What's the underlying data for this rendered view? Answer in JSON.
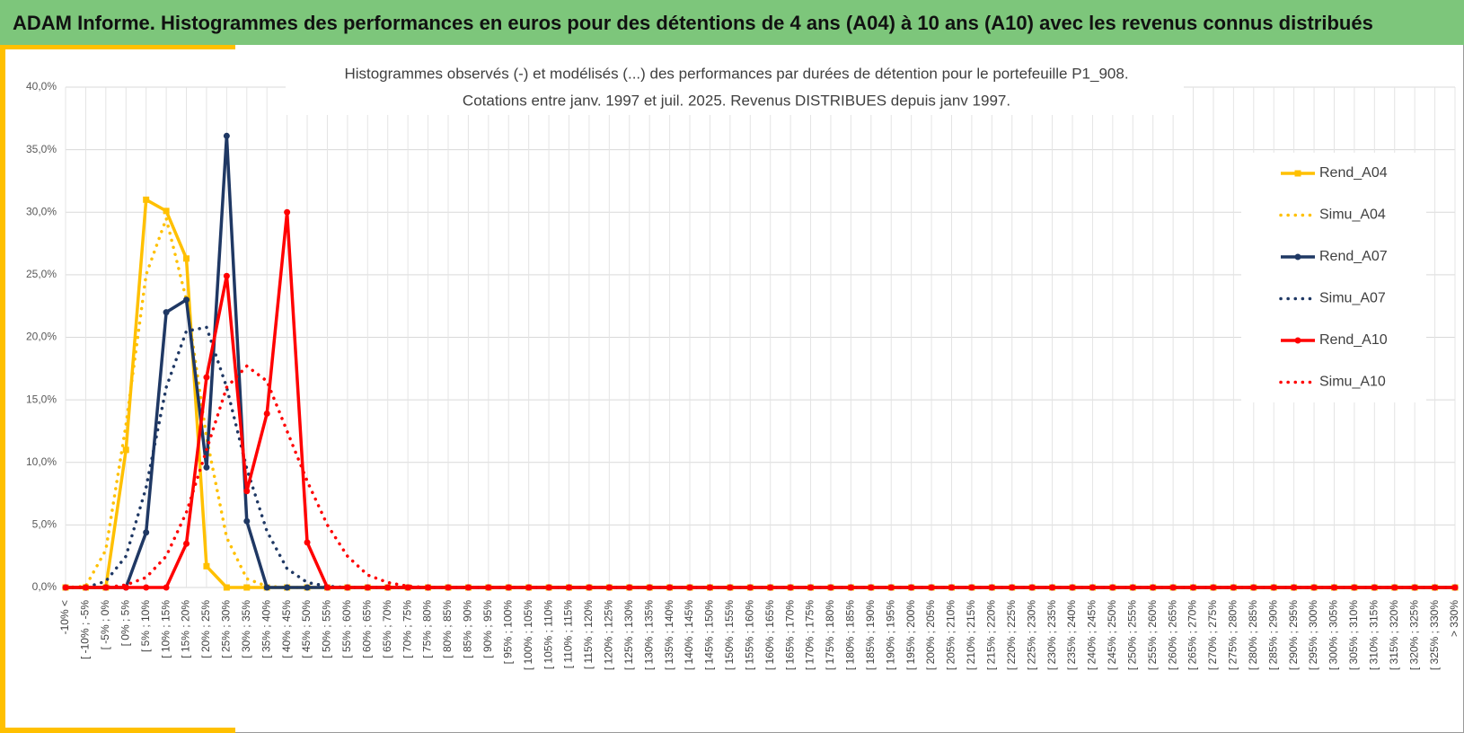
{
  "header_title": "ADAM Informe. Histogrammes des performances en euros pour des détentions de 4 ans (A04) à 10 ans (A10) avec les revenus connus distribués",
  "chart_data": {
    "type": "line",
    "title": [
      "Histogrammes observés (-) et modélisés (...) des performances par durées de détention pour le portefeuille P1_908.",
      "Cotations entre janv. 1997 et juil. 2025. Revenus DISTRIBUES depuis janv 1997."
    ],
    "categories": [
      "-10% <",
      "[ -10% ; -5%",
      "[ -5% ; 0%",
      "[ 0% ; 5%",
      "[ 5% ; 10%",
      "[ 10% ; 15%",
      "[ 15% ; 20%",
      "[ 20% ; 25%",
      "[ 25% ; 30%",
      "[ 30% ; 35%",
      "[ 35% ; 40%",
      "[ 40% ; 45%",
      "[ 45% ; 50%",
      "[ 50% ; 55%",
      "[ 55% ; 60%",
      "[ 60% ; 65%",
      "[ 65% ; 70%",
      "[ 70% ; 75%",
      "[ 75% ; 80%",
      "[ 80% ; 85%",
      "[ 85% ; 90%",
      "[ 90% ; 95%",
      "[ 95% ; 100%",
      "[ 100% ; 105%",
      "[ 105% ; 110%",
      "[ 110% ; 115%",
      "[ 115% ; 120%",
      "[ 120% ; 125%",
      "[ 125% ; 130%",
      "[ 130% ; 135%",
      "[ 135% ; 140%",
      "[ 140% ; 145%",
      "[ 145% ; 150%",
      "[ 150% ; 155%",
      "[ 155% ; 160%",
      "[ 160% ; 165%",
      "[ 165% ; 170%",
      "[ 170% ; 175%",
      "[ 175% ; 180%",
      "[ 180% ; 185%",
      "[ 185% ; 190%",
      "[ 190% ; 195%",
      "[ 195% ; 200%",
      "[ 200% ; 205%",
      "[ 205% ; 210%",
      "[ 210% ; 215%",
      "[ 215% ; 220%",
      "[ 220% ; 225%",
      "[ 225% ; 230%",
      "[ 230% ; 235%",
      "[ 235% ; 240%",
      "[ 240% ; 245%",
      "[ 245% ; 250%",
      "[ 250% ; 255%",
      "[ 255% ; 260%",
      "[ 260% ; 265%",
      "[ 265% ; 270%",
      "[ 270% ; 275%",
      "[ 275% ; 280%",
      "[ 280% ; 285%",
      "[ 285% ; 290%",
      "[ 290% ; 295%",
      "[ 295% ; 300%",
      "[ 300% ; 305%",
      "[ 305% ; 310%",
      "[ 310% ; 315%",
      "[ 315% ; 320%",
      "[ 320% ; 325%",
      "[ 325% ; 330%",
      "> 330%"
    ],
    "series": [
      {
        "name": "Rend_A04",
        "color": "#ffc000",
        "marker": "square",
        "dash": false,
        "values": [
          0,
          0,
          0,
          11.0,
          31.0,
          30.1,
          26.3,
          1.7,
          0,
          0,
          0,
          0,
          0,
          0,
          0,
          0,
          0,
          0,
          0,
          0,
          0,
          0,
          0,
          0,
          0,
          0,
          0,
          0,
          0,
          0,
          0,
          0,
          0,
          0,
          0,
          0,
          0,
          0,
          0,
          0,
          0,
          0,
          0,
          0,
          0,
          0,
          0,
          0,
          0,
          0,
          0,
          0,
          0,
          0,
          0,
          0,
          0,
          0,
          0,
          0,
          0,
          0,
          0,
          0,
          0,
          0,
          0,
          0,
          0,
          0
        ]
      },
      {
        "name": "Simu_A04",
        "color": "#ffc000",
        "marker": "none",
        "dash": true,
        "values": [
          0,
          0.1,
          3.0,
          13.0,
          25.0,
          29.5,
          23.0,
          12.0,
          4.0,
          0.7,
          0.1,
          0,
          0,
          0,
          0,
          0,
          0,
          0,
          0,
          0,
          0,
          0,
          0,
          0,
          0,
          0,
          0,
          0,
          0,
          0,
          0,
          0,
          0,
          0,
          0,
          0,
          0,
          0,
          0,
          0,
          0,
          0,
          0,
          0,
          0,
          0,
          0,
          0,
          0,
          0,
          0,
          0,
          0,
          0,
          0,
          0,
          0,
          0,
          0,
          0,
          0,
          0,
          0,
          0,
          0,
          0,
          0,
          0,
          0,
          0
        ]
      },
      {
        "name": "Rend_A07",
        "color": "#1f3864",
        "marker": "circle",
        "dash": false,
        "values": [
          0,
          0,
          0,
          0,
          4.4,
          22.0,
          23.0,
          9.6,
          36.1,
          5.3,
          0,
          0,
          0,
          0,
          0,
          0,
          0,
          0,
          0,
          0,
          0,
          0,
          0,
          0,
          0,
          0,
          0,
          0,
          0,
          0,
          0,
          0,
          0,
          0,
          0,
          0,
          0,
          0,
          0,
          0,
          0,
          0,
          0,
          0,
          0,
          0,
          0,
          0,
          0,
          0,
          0,
          0,
          0,
          0,
          0,
          0,
          0,
          0,
          0,
          0,
          0,
          0,
          0,
          0,
          0,
          0,
          0,
          0,
          0,
          0
        ]
      },
      {
        "name": "Simu_A07",
        "color": "#1f3864",
        "marker": "none",
        "dash": true,
        "values": [
          0,
          0,
          0.5,
          2.5,
          8.0,
          16.0,
          20.5,
          20.8,
          16.0,
          9.5,
          4.5,
          1.5,
          0.4,
          0.1,
          0,
          0,
          0,
          0,
          0,
          0,
          0,
          0,
          0,
          0,
          0,
          0,
          0,
          0,
          0,
          0,
          0,
          0,
          0,
          0,
          0,
          0,
          0,
          0,
          0,
          0,
          0,
          0,
          0,
          0,
          0,
          0,
          0,
          0,
          0,
          0,
          0,
          0,
          0,
          0,
          0,
          0,
          0,
          0,
          0,
          0,
          0,
          0,
          0,
          0,
          0,
          0,
          0,
          0,
          0,
          0
        ]
      },
      {
        "name": "Rend_A10",
        "color": "#ff0000",
        "marker": "circle",
        "dash": false,
        "values": [
          0,
          0,
          0,
          0,
          0,
          0,
          3.5,
          16.8,
          24.9,
          7.7,
          13.9,
          30.0,
          3.6,
          0,
          0,
          0,
          0,
          0,
          0,
          0,
          0,
          0,
          0,
          0,
          0,
          0,
          0,
          0,
          0,
          0,
          0,
          0,
          0,
          0,
          0,
          0,
          0,
          0,
          0,
          0,
          0,
          0,
          0,
          0,
          0,
          0,
          0,
          0,
          0,
          0,
          0,
          0,
          0,
          0,
          0,
          0,
          0,
          0,
          0,
          0,
          0,
          0,
          0,
          0,
          0,
          0,
          0,
          0,
          0,
          0
        ]
      },
      {
        "name": "Simu_A10",
        "color": "#ff0000",
        "marker": "none",
        "dash": true,
        "values": [
          0,
          0,
          0,
          0.2,
          0.8,
          2.5,
          6.0,
          11.0,
          16.0,
          17.7,
          16.5,
          12.5,
          8.5,
          5.0,
          2.5,
          1.0,
          0.4,
          0.1,
          0,
          0,
          0,
          0,
          0,
          0,
          0,
          0,
          0,
          0,
          0,
          0,
          0,
          0,
          0,
          0,
          0,
          0,
          0,
          0,
          0,
          0,
          0,
          0,
          0,
          0,
          0,
          0,
          0,
          0,
          0,
          0,
          0,
          0,
          0,
          0,
          0,
          0,
          0,
          0,
          0,
          0,
          0,
          0,
          0,
          0,
          0,
          0,
          0,
          0,
          0,
          0
        ]
      }
    ],
    "ylim": [
      0,
      40
    ],
    "yticks": [
      {
        "value": 0,
        "label": "0,0%"
      },
      {
        "value": 5,
        "label": "5,0%"
      },
      {
        "value": 10,
        "label": "10,0%"
      },
      {
        "value": 15,
        "label": "15,0%"
      },
      {
        "value": 20,
        "label": "20,0%"
      },
      {
        "value": 25,
        "label": "25,0%"
      },
      {
        "value": 30,
        "label": "30,0%"
      },
      {
        "value": 35,
        "label": "35,0%"
      },
      {
        "value": 40,
        "label": "40,0%"
      }
    ],
    "grid": true,
    "legend": "right"
  }
}
